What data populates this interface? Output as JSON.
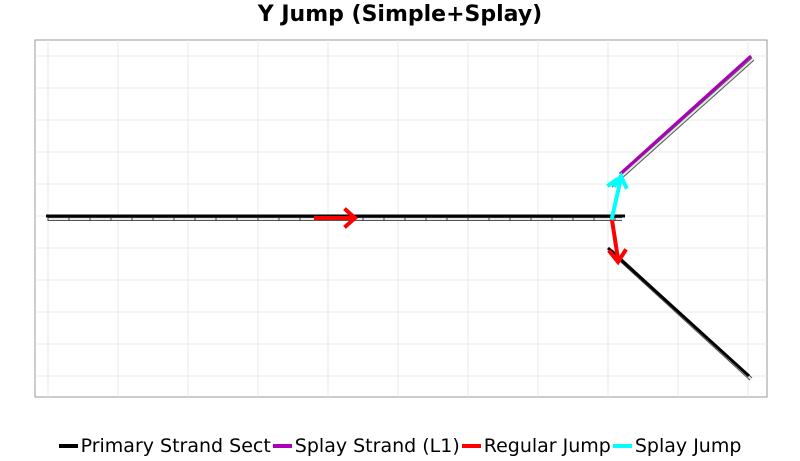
{
  "title": "Y Jump (Simple+Splay)",
  "colors": {
    "primary": "#000000",
    "splay": "#aa00bb",
    "regular_jump": "#ff0000",
    "splay_jump": "#00ffff",
    "grid": "#e8e8e8",
    "frame": "#999999"
  },
  "legend": {
    "items": [
      {
        "label": "Primary Strand Sect",
        "color": "#000000"
      },
      {
        "label": "Splay Strand (L1)",
        "color": "#aa00bb"
      },
      {
        "label": "Regular Jump",
        "color": "#ff0000"
      },
      {
        "label": "Splay Jump",
        "color": "#00ffff"
      }
    ]
  }
}
